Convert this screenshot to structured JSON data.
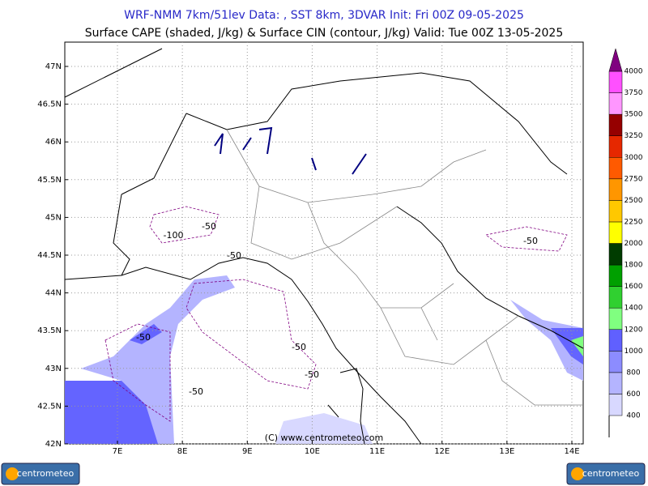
{
  "header": {
    "title": "WRF-NMM 7km/51lev  Data: , SST 8km, 3DVAR  Init: Fri 00Z 09-05-2025",
    "subtitle": "Surface CAPE (shaded, J/kg) & Surface CIN (contour, J/kg)  Valid: Tue 00Z 13-05-2025"
  },
  "map": {
    "lat_labels": [
      "47N",
      "46.5N",
      "46N",
      "45.5N",
      "45N",
      "44.5N",
      "44N",
      "43.5N",
      "43N",
      "42.5N",
      "42N"
    ],
    "lon_labels": [
      "7E",
      "8E",
      "9E",
      "10E",
      "11E",
      "12E",
      "13E",
      "14E"
    ],
    "contour_labels": [
      "-50",
      "-100",
      "-50",
      "-50",
      "-50",
      "-50",
      "-50",
      "-50"
    ],
    "credit": "(C) www.centrometeo.com"
  },
  "colorbar": {
    "levels": [
      {
        "value": 400,
        "color": "#d8d8ff"
      },
      {
        "value": 600,
        "color": "#b4b4ff"
      },
      {
        "value": 800,
        "color": "#8c8cff"
      },
      {
        "value": 1000,
        "color": "#6060ff"
      },
      {
        "value": 1200,
        "color": "#80ff80"
      },
      {
        "value": 1400,
        "color": "#30d030"
      },
      {
        "value": 1600,
        "color": "#00a000"
      },
      {
        "value": 1800,
        "color": "#003c00"
      },
      {
        "value": 2000,
        "color": "#ffff00"
      },
      {
        "value": 2250,
        "color": "#ffc800"
      },
      {
        "value": 2500,
        "color": "#ff9600"
      },
      {
        "value": 2750,
        "color": "#ff5a00"
      },
      {
        "value": 3000,
        "color": "#e62800"
      },
      {
        "value": 3250,
        "color": "#960000"
      },
      {
        "value": 3500,
        "color": "#ff96ff"
      },
      {
        "value": 3750,
        "color": "#ff50ff"
      },
      {
        "value": 4000,
        "color": "#800080"
      }
    ]
  },
  "logos": [
    "centrometeo",
    "centrometeo"
  ]
}
